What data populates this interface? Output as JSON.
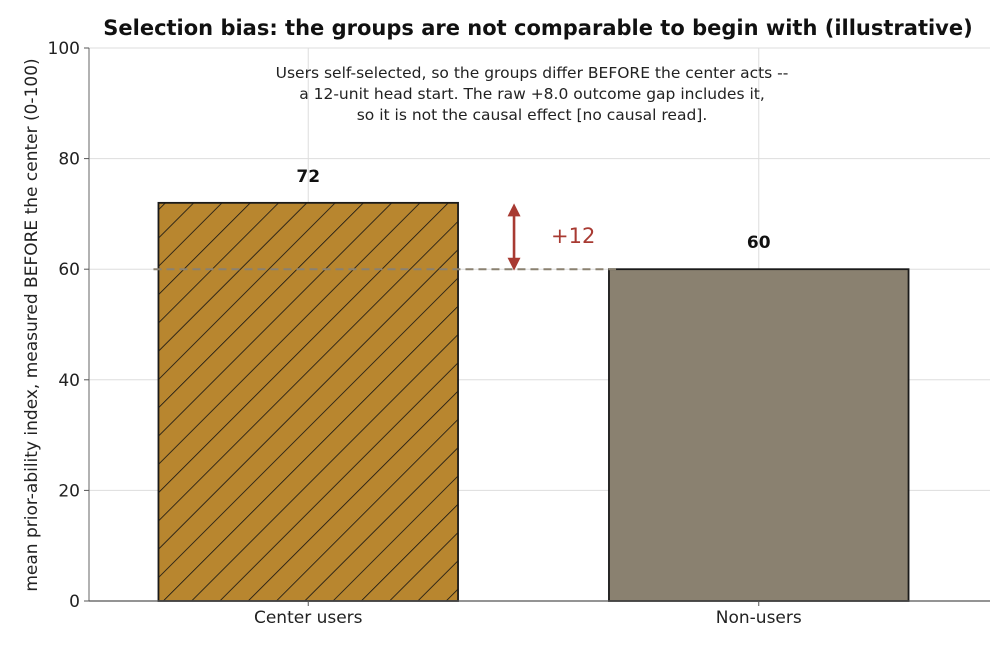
{
  "chart_data": {
    "type": "bar",
    "title": "Selection bias: the groups are not comparable to begin with (illustrative)",
    "ylabel": "mean prior-ability index, measured BEFORE the center (0-100)",
    "xlabel": "",
    "categories": [
      "Center users",
      "Non-users"
    ],
    "values": [
      72,
      60
    ],
    "data_labels": [
      "72",
      "60"
    ],
    "ylim": [
      0,
      100
    ],
    "yticks": [
      0,
      20,
      40,
      60,
      80,
      100
    ],
    "ytick_labels": [
      "0",
      "20",
      "40",
      "60",
      "80",
      "100"
    ],
    "grid": true,
    "bar_colors": [
      "#b8862f",
      "#8a8170"
    ],
    "bar_hatch": [
      "diagonal",
      "none"
    ],
    "annotation_lines": [
      "Users self-selected, so the groups differ BEFORE the center acts --",
      "a 12-unit head start. The raw +8.0 outcome gap includes it,",
      "so it is not the causal effect [no causal read]."
    ],
    "reference_line_value": 60,
    "gap": {
      "from": 60,
      "to": 72,
      "label": "+12",
      "color": "#a83a32"
    }
  }
}
